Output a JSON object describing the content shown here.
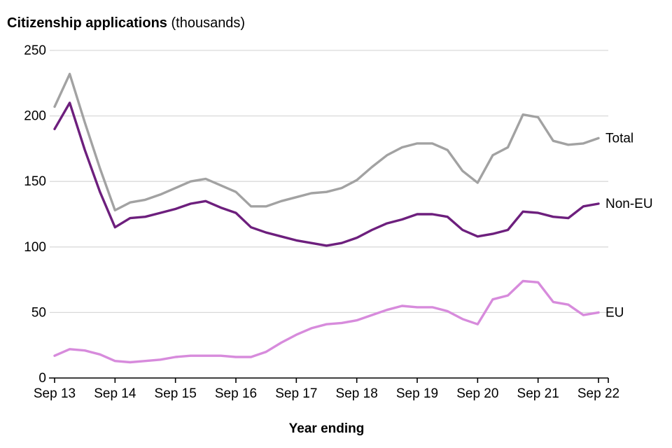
{
  "title": {
    "main": "Citizenship applications",
    "suffix": " (thousands)"
  },
  "colors": {
    "total": "#a2a2a2",
    "non_eu": "#6d1f7d",
    "eu": "#d78bdc",
    "gridline": "#d9d9d9",
    "axis": "#000000",
    "text": "#000000"
  },
  "chart_data": {
    "type": "line",
    "title": "Citizenship applications (thousands)",
    "xlabel": "Year ending",
    "ylabel": "",
    "ylim": [
      0,
      250
    ],
    "yticks": [
      0,
      50,
      100,
      150,
      200,
      250
    ],
    "grid": "horizontal",
    "legend_position": "right-end-labels",
    "xtick_every": 4,
    "xtick_labels": [
      "Sep 13",
      "Sep 14",
      "Sep 15",
      "Sep 16",
      "Sep 17",
      "Sep 18",
      "Sep 19",
      "Sep 20",
      "Sep 21",
      "Sep 22"
    ],
    "x": [
      "Sep 13",
      "Dec 13",
      "Mar 14",
      "Jun 14",
      "Sep 14",
      "Dec 14",
      "Mar 15",
      "Jun 15",
      "Sep 15",
      "Dec 15",
      "Mar 16",
      "Jun 16",
      "Sep 16",
      "Dec 16",
      "Mar 17",
      "Jun 17",
      "Sep 17",
      "Dec 17",
      "Mar 18",
      "Jun 18",
      "Sep 18",
      "Dec 18",
      "Mar 19",
      "Jun 19",
      "Sep 19",
      "Dec 19",
      "Mar 20",
      "Jun 20",
      "Sep 20",
      "Dec 20",
      "Mar 21",
      "Jun 21",
      "Sep 21",
      "Dec 21",
      "Mar 22",
      "Jun 22",
      "Sep 22"
    ],
    "series": [
      {
        "name": "Total",
        "color_key": "total",
        "values": [
          207,
          232,
          195,
          160,
          128,
          134,
          136,
          140,
          145,
          150,
          152,
          147,
          142,
          131,
          131,
          135,
          138,
          141,
          142,
          145,
          151,
          161,
          170,
          176,
          179,
          179,
          174,
          158,
          149,
          170,
          176,
          201,
          199,
          181,
          178,
          179,
          183
        ]
      },
      {
        "name": "Non-EU",
        "color_key": "non_eu",
        "values": [
          190,
          210,
          174,
          142,
          115,
          122,
          123,
          126,
          129,
          133,
          135,
          130,
          126,
          115,
          111,
          108,
          105,
          103,
          101,
          103,
          107,
          113,
          118,
          121,
          125,
          125,
          123,
          113,
          108,
          110,
          113,
          127,
          126,
          123,
          122,
          131,
          133
        ]
      },
      {
        "name": "EU",
        "color_key": "eu",
        "values": [
          17,
          22,
          21,
          18,
          13,
          12,
          13,
          14,
          16,
          17,
          17,
          17,
          16,
          16,
          20,
          27,
          33,
          38,
          41,
          42,
          44,
          48,
          52,
          55,
          54,
          54,
          51,
          45,
          41,
          60,
          63,
          74,
          73,
          58,
          56,
          48,
          50
        ]
      }
    ]
  }
}
